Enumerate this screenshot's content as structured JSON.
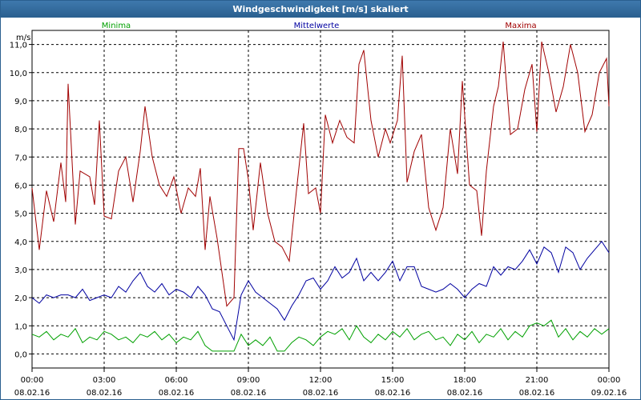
{
  "window": {
    "title": "Windgeschwindigkeit [m/s] skaliert"
  },
  "chart_data": {
    "type": "line",
    "title": "Windgeschwindigkeit [m/s] skaliert",
    "ylabel": "m/s",
    "ylim": [
      -0.5,
      11.5
    ],
    "y_ticks": [
      "11,0",
      "10,0",
      "9,0",
      "8,0",
      "7,0",
      "6,0",
      "5,0",
      "4,0",
      "3,0",
      "2,0",
      "1,0",
      "0,0"
    ],
    "x_ticks": [
      {
        "time": "00:00",
        "date": "08.02.16"
      },
      {
        "time": "03:00",
        "date": "08.02.16"
      },
      {
        "time": "06:00",
        "date": "08.02.16"
      },
      {
        "time": "09:00",
        "date": "08.02.16"
      },
      {
        "time": "12:00",
        "date": "08.02.16"
      },
      {
        "time": "15:00",
        "date": "08.02.16"
      },
      {
        "time": "18:00",
        "date": "08.02.16"
      },
      {
        "time": "21:00",
        "date": "08.02.16"
      },
      {
        "time": "00:00",
        "date": "09.02.16"
      }
    ],
    "grid": true,
    "legend_position": "top",
    "x_range_hours": [
      0,
      24
    ],
    "series": [
      {
        "name": "Minima",
        "color": "#00a000",
        "points": [
          [
            0,
            0.7
          ],
          [
            0.3,
            0.6
          ],
          [
            0.6,
            0.8
          ],
          [
            0.9,
            0.5
          ],
          [
            1.2,
            0.7
          ],
          [
            1.5,
            0.6
          ],
          [
            1.8,
            0.9
          ],
          [
            2.1,
            0.4
          ],
          [
            2.4,
            0.6
          ],
          [
            2.7,
            0.5
          ],
          [
            3.0,
            0.8
          ],
          [
            3.3,
            0.7
          ],
          [
            3.6,
            0.5
          ],
          [
            3.9,
            0.6
          ],
          [
            4.2,
            0.4
          ],
          [
            4.5,
            0.7
          ],
          [
            4.8,
            0.6
          ],
          [
            5.1,
            0.8
          ],
          [
            5.4,
            0.5
          ],
          [
            5.7,
            0.7
          ],
          [
            6.0,
            0.4
          ],
          [
            6.3,
            0.6
          ],
          [
            6.6,
            0.5
          ],
          [
            6.9,
            0.8
          ],
          [
            7.2,
            0.3
          ],
          [
            7.5,
            0.1
          ],
          [
            7.8,
            0.1
          ],
          [
            8.1,
            0.1
          ],
          [
            8.4,
            0.1
          ],
          [
            8.7,
            0.7
          ],
          [
            9.0,
            0.3
          ],
          [
            9.3,
            0.5
          ],
          [
            9.6,
            0.3
          ],
          [
            9.9,
            0.6
          ],
          [
            10.2,
            0.1
          ],
          [
            10.5,
            0.1
          ],
          [
            10.8,
            0.4
          ],
          [
            11.1,
            0.6
          ],
          [
            11.4,
            0.5
          ],
          [
            11.7,
            0.3
          ],
          [
            12.0,
            0.6
          ],
          [
            12.3,
            0.8
          ],
          [
            12.6,
            0.7
          ],
          [
            12.9,
            0.9
          ],
          [
            13.2,
            0.5
          ],
          [
            13.5,
            1.0
          ],
          [
            13.8,
            0.6
          ],
          [
            14.1,
            0.4
          ],
          [
            14.4,
            0.7
          ],
          [
            14.7,
            0.5
          ],
          [
            15.0,
            0.8
          ],
          [
            15.3,
            0.6
          ],
          [
            15.6,
            0.9
          ],
          [
            15.9,
            0.5
          ],
          [
            16.2,
            0.7
          ],
          [
            16.5,
            0.8
          ],
          [
            16.8,
            0.5
          ],
          [
            17.1,
            0.6
          ],
          [
            17.4,
            0.3
          ],
          [
            17.7,
            0.7
          ],
          [
            18.0,
            0.5
          ],
          [
            18.3,
            0.8
          ],
          [
            18.6,
            0.4
          ],
          [
            18.9,
            0.7
          ],
          [
            19.2,
            0.6
          ],
          [
            19.5,
            0.9
          ],
          [
            19.8,
            0.5
          ],
          [
            20.1,
            0.8
          ],
          [
            20.4,
            0.6
          ],
          [
            20.7,
            1.0
          ],
          [
            21.0,
            1.1
          ],
          [
            21.3,
            1.0
          ],
          [
            21.6,
            1.2
          ],
          [
            21.9,
            0.6
          ],
          [
            22.2,
            0.9
          ],
          [
            22.5,
            0.5
          ],
          [
            22.8,
            0.8
          ],
          [
            23.1,
            0.6
          ],
          [
            23.4,
            0.9
          ],
          [
            23.7,
            0.7
          ],
          [
            24.0,
            0.9
          ]
        ]
      },
      {
        "name": "Mittelwerte",
        "color": "#0000a0",
        "points": [
          [
            0,
            2.0
          ],
          [
            0.3,
            1.8
          ],
          [
            0.6,
            2.1
          ],
          [
            0.9,
            2.0
          ],
          [
            1.2,
            2.1
          ],
          [
            1.5,
            2.1
          ],
          [
            1.8,
            2.0
          ],
          [
            2.1,
            2.3
          ],
          [
            2.4,
            1.9
          ],
          [
            2.7,
            2.0
          ],
          [
            3.0,
            2.1
          ],
          [
            3.3,
            2.0
          ],
          [
            3.6,
            2.4
          ],
          [
            3.9,
            2.2
          ],
          [
            4.2,
            2.6
          ],
          [
            4.5,
            2.9
          ],
          [
            4.8,
            2.4
          ],
          [
            5.1,
            2.2
          ],
          [
            5.4,
            2.5
          ],
          [
            5.7,
            2.1
          ],
          [
            6.0,
            2.3
          ],
          [
            6.3,
            2.2
          ],
          [
            6.6,
            2.0
          ],
          [
            6.9,
            2.4
          ],
          [
            7.2,
            2.1
          ],
          [
            7.5,
            1.6
          ],
          [
            7.8,
            1.5
          ],
          [
            8.1,
            1.0
          ],
          [
            8.4,
            0.5
          ],
          [
            8.7,
            2.1
          ],
          [
            9.0,
            2.6
          ],
          [
            9.3,
            2.2
          ],
          [
            9.6,
            2.0
          ],
          [
            9.9,
            1.8
          ],
          [
            10.2,
            1.6
          ],
          [
            10.5,
            1.2
          ],
          [
            10.8,
            1.7
          ],
          [
            11.1,
            2.1
          ],
          [
            11.4,
            2.6
          ],
          [
            11.7,
            2.7
          ],
          [
            12.0,
            2.3
          ],
          [
            12.3,
            2.6
          ],
          [
            12.6,
            3.1
          ],
          [
            12.9,
            2.7
          ],
          [
            13.2,
            2.9
          ],
          [
            13.5,
            3.4
          ],
          [
            13.8,
            2.6
          ],
          [
            14.1,
            2.9
          ],
          [
            14.4,
            2.6
          ],
          [
            14.7,
            2.9
          ],
          [
            15.0,
            3.3
          ],
          [
            15.3,
            2.6
          ],
          [
            15.6,
            3.1
          ],
          [
            15.9,
            3.1
          ],
          [
            16.2,
            2.4
          ],
          [
            16.5,
            2.3
          ],
          [
            16.8,
            2.2
          ],
          [
            17.1,
            2.3
          ],
          [
            17.4,
            2.5
          ],
          [
            17.7,
            2.3
          ],
          [
            18.0,
            2.0
          ],
          [
            18.3,
            2.3
          ],
          [
            18.6,
            2.5
          ],
          [
            18.9,
            2.4
          ],
          [
            19.2,
            3.1
          ],
          [
            19.5,
            2.8
          ],
          [
            19.8,
            3.1
          ],
          [
            20.1,
            3.0
          ],
          [
            20.4,
            3.3
          ],
          [
            20.7,
            3.7
          ],
          [
            21.0,
            3.2
          ],
          [
            21.3,
            3.8
          ],
          [
            21.6,
            3.6
          ],
          [
            21.9,
            2.9
          ],
          [
            22.2,
            3.8
          ],
          [
            22.5,
            3.6
          ],
          [
            22.8,
            3.0
          ],
          [
            23.1,
            3.4
          ],
          [
            23.4,
            3.7
          ],
          [
            23.7,
            4.0
          ],
          [
            24.0,
            3.6
          ]
        ]
      },
      {
        "name": "Maxima",
        "color": "#a00000",
        "points": [
          [
            0,
            5.9
          ],
          [
            0.3,
            3.7
          ],
          [
            0.6,
            5.8
          ],
          [
            0.9,
            4.7
          ],
          [
            1.2,
            6.8
          ],
          [
            1.4,
            5.4
          ],
          [
            1.5,
            9.6
          ],
          [
            1.8,
            4.6
          ],
          [
            2.0,
            6.5
          ],
          [
            2.4,
            6.3
          ],
          [
            2.6,
            5.3
          ],
          [
            2.8,
            8.3
          ],
          [
            3.0,
            4.9
          ],
          [
            3.3,
            4.8
          ],
          [
            3.6,
            6.5
          ],
          [
            3.9,
            7.0
          ],
          [
            4.2,
            5.4
          ],
          [
            4.5,
            7.2
          ],
          [
            4.7,
            8.8
          ],
          [
            5.0,
            7.0
          ],
          [
            5.3,
            6.0
          ],
          [
            5.6,
            5.6
          ],
          [
            5.9,
            6.3
          ],
          [
            6.2,
            5.0
          ],
          [
            6.5,
            5.9
          ],
          [
            6.8,
            5.6
          ],
          [
            7.0,
            6.6
          ],
          [
            7.2,
            3.7
          ],
          [
            7.4,
            5.6
          ],
          [
            7.7,
            4.1
          ],
          [
            8.1,
            1.7
          ],
          [
            8.4,
            2.0
          ],
          [
            8.6,
            7.3
          ],
          [
            8.8,
            7.3
          ],
          [
            9.0,
            6.2
          ],
          [
            9.2,
            4.4
          ],
          [
            9.5,
            6.8
          ],
          [
            9.8,
            5.0
          ],
          [
            10.1,
            4.0
          ],
          [
            10.4,
            3.8
          ],
          [
            10.7,
            3.3
          ],
          [
            11.0,
            5.8
          ],
          [
            11.3,
            8.2
          ],
          [
            11.5,
            5.7
          ],
          [
            11.8,
            5.9
          ],
          [
            12.0,
            5.0
          ],
          [
            12.2,
            8.5
          ],
          [
            12.5,
            7.5
          ],
          [
            12.8,
            8.3
          ],
          [
            13.1,
            7.7
          ],
          [
            13.4,
            7.5
          ],
          [
            13.6,
            10.3
          ],
          [
            13.8,
            10.8
          ],
          [
            14.1,
            8.3
          ],
          [
            14.4,
            7.0
          ],
          [
            14.7,
            8.0
          ],
          [
            14.9,
            7.5
          ],
          [
            15.2,
            8.3
          ],
          [
            15.4,
            10.6
          ],
          [
            15.6,
            6.1
          ],
          [
            15.9,
            7.2
          ],
          [
            16.2,
            7.8
          ],
          [
            16.5,
            5.2
          ],
          [
            16.8,
            4.4
          ],
          [
            17.1,
            5.2
          ],
          [
            17.4,
            8.0
          ],
          [
            17.7,
            6.4
          ],
          [
            17.9,
            9.7
          ],
          [
            18.2,
            6.0
          ],
          [
            18.5,
            5.8
          ],
          [
            18.7,
            4.2
          ],
          [
            18.9,
            6.5
          ],
          [
            19.2,
            8.8
          ],
          [
            19.4,
            9.5
          ],
          [
            19.6,
            11.1
          ],
          [
            19.9,
            7.8
          ],
          [
            20.2,
            8.0
          ],
          [
            20.5,
            9.4
          ],
          [
            20.8,
            10.3
          ],
          [
            21.0,
            7.9
          ],
          [
            21.2,
            11.1
          ],
          [
            21.5,
            10.0
          ],
          [
            21.8,
            8.6
          ],
          [
            22.1,
            9.5
          ],
          [
            22.4,
            11.0
          ],
          [
            22.7,
            10.0
          ],
          [
            23.0,
            7.9
          ],
          [
            23.3,
            8.5
          ],
          [
            23.6,
            10.0
          ],
          [
            23.9,
            10.5
          ],
          [
            24.0,
            8.8
          ]
        ]
      }
    ]
  }
}
